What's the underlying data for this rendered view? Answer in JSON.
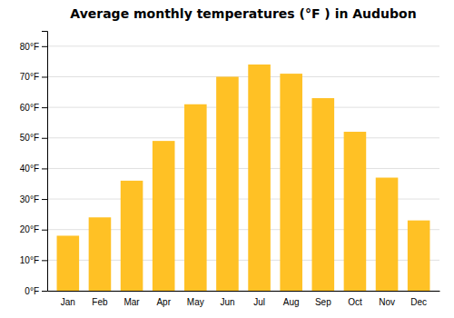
{
  "chart_data": {
    "type": "bar",
    "title": "Average monthly temperatures (°F ) in Audubon",
    "categories": [
      "Jan",
      "Feb",
      "Mar",
      "Apr",
      "May",
      "Jun",
      "Jul",
      "Aug",
      "Sep",
      "Oct",
      "Nov",
      "Dec"
    ],
    "values": [
      18,
      24,
      36,
      49,
      61,
      70,
      74,
      71,
      63,
      52,
      37,
      23
    ],
    "color": "#FFC125",
    "ylim": [
      0,
      85
    ],
    "yticks": [
      {
        "value": 0,
        "label": "0°F"
      },
      {
        "value": 10,
        "label": "10°F"
      },
      {
        "value": 20,
        "label": "20°F"
      },
      {
        "value": 30,
        "label": "30°F"
      },
      {
        "value": 40,
        "label": "40°F"
      },
      {
        "value": 50,
        "label": "50°F"
      },
      {
        "value": 60,
        "label": "60°F"
      },
      {
        "value": 70,
        "label": "70°F"
      },
      {
        "value": 80,
        "label": "80°F"
      }
    ],
    "grid": true
  }
}
